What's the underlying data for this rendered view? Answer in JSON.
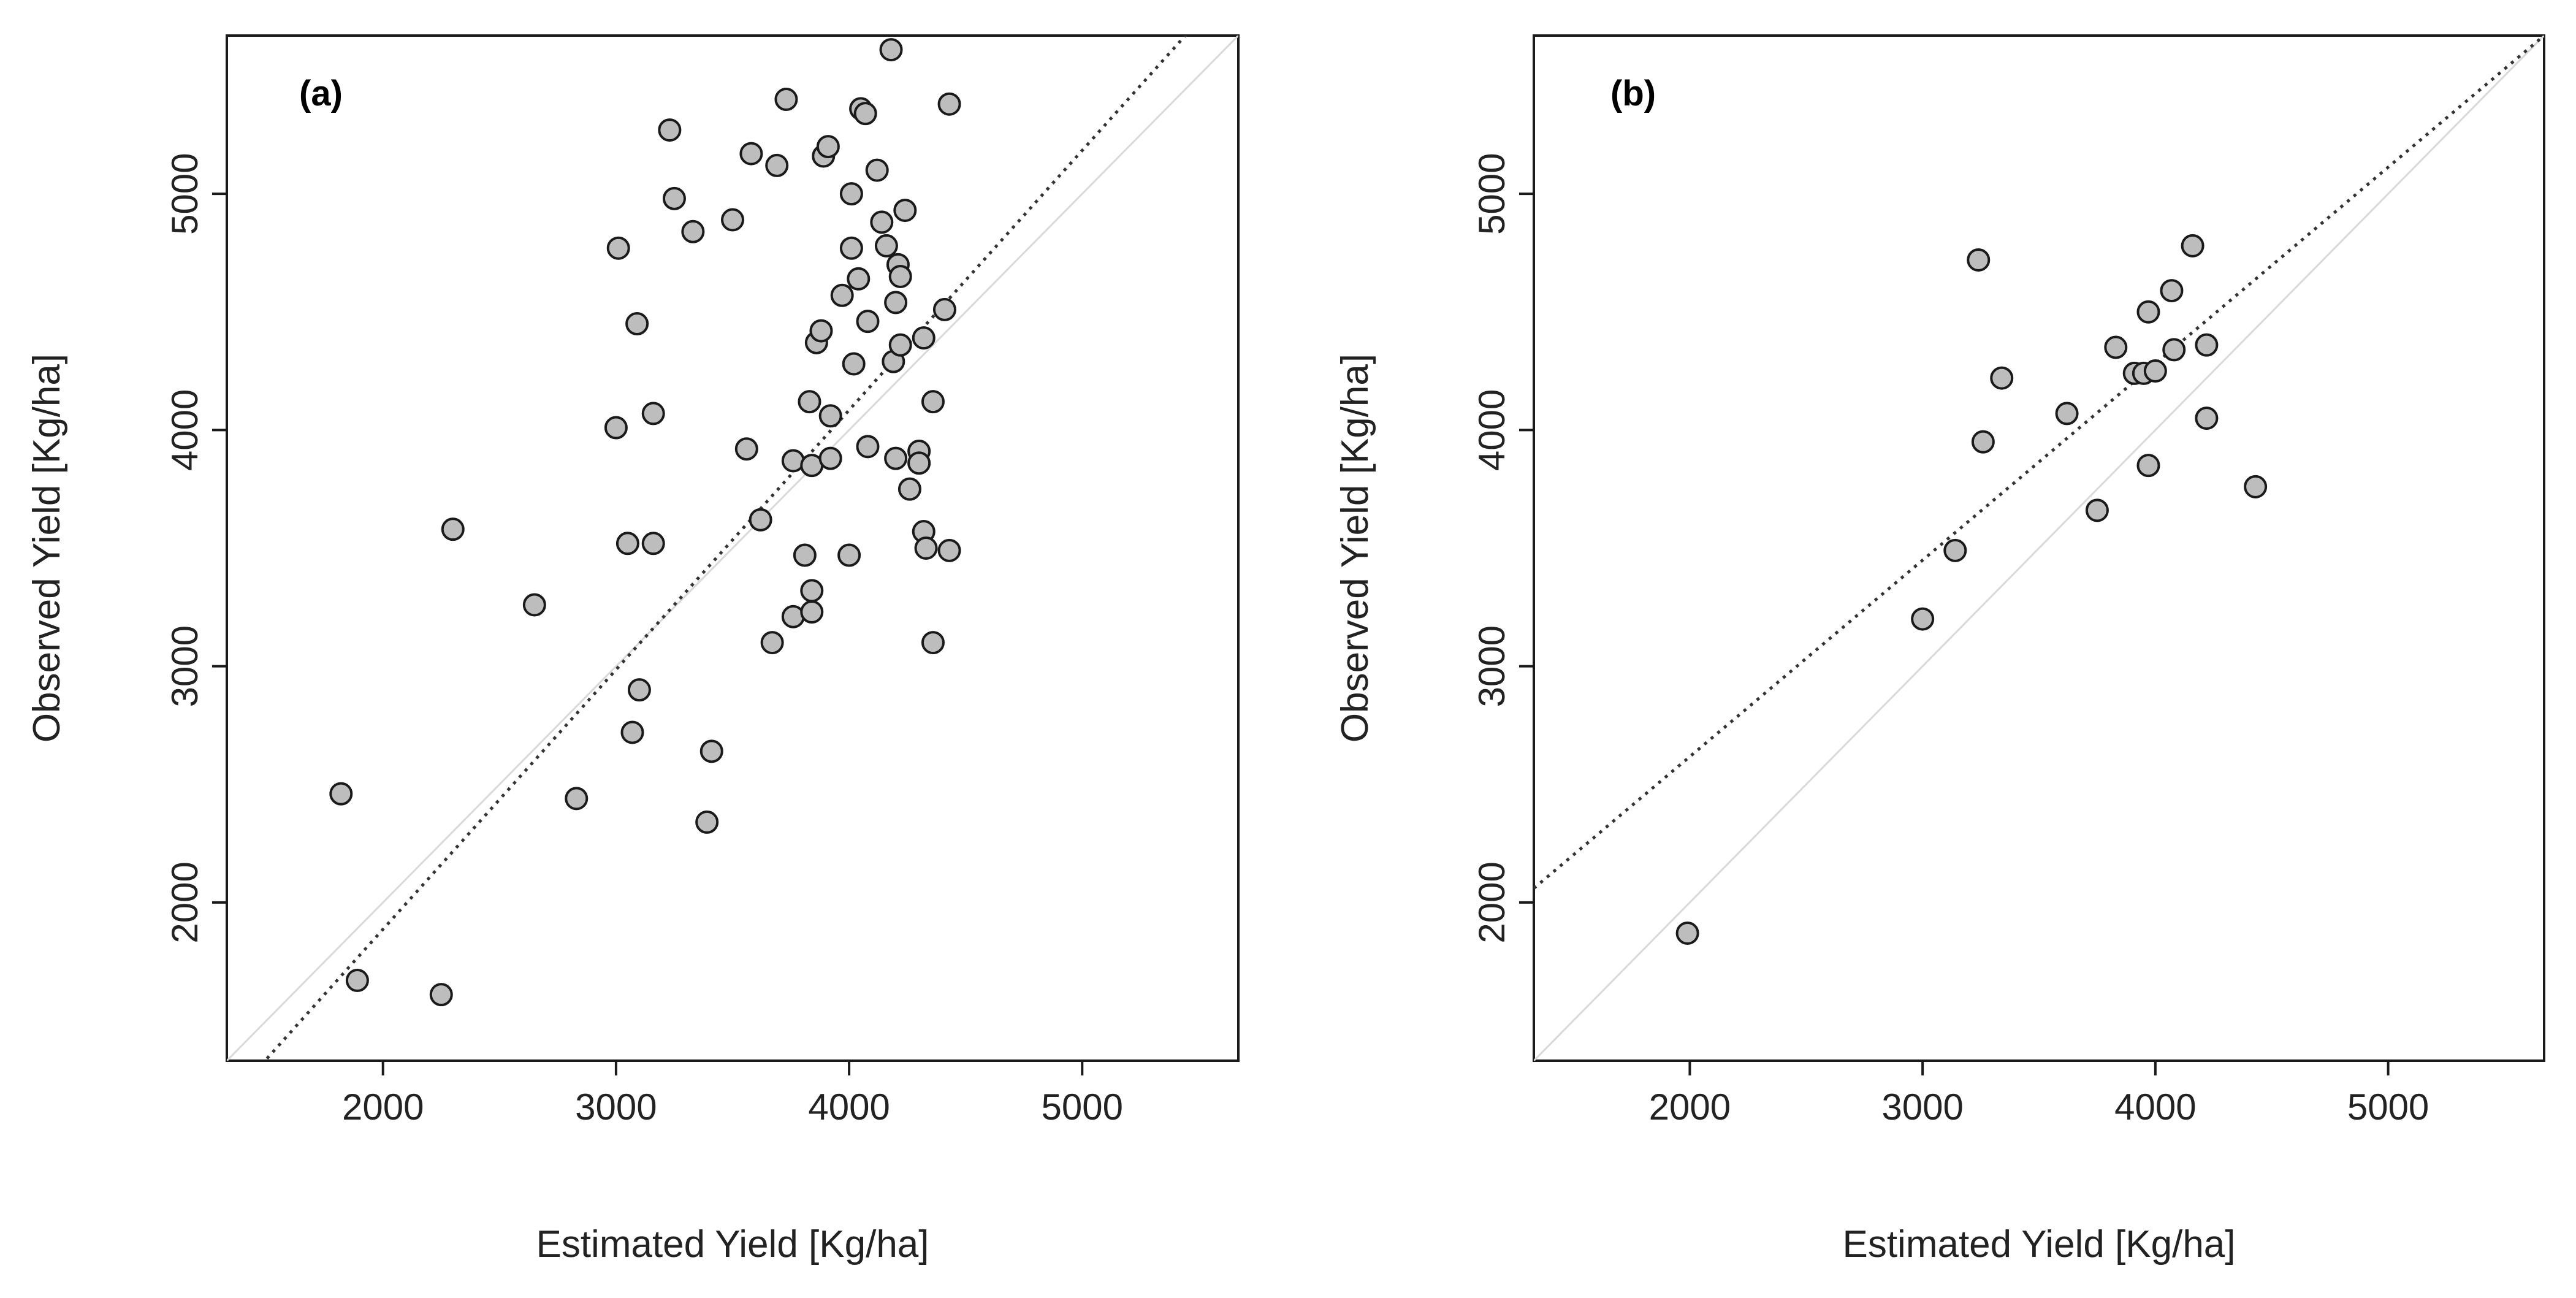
{
  "chart_data": [
    {
      "type": "scatter",
      "panel_label": "(a)",
      "xlabel": "Estimated Yield [Kg/ha]",
      "ylabel": "Observed Yield [Kg/ha]",
      "xlim": [
        1330,
        5670
      ],
      "ylim": [
        1330,
        5670
      ],
      "xticks": [
        2000,
        3000,
        4000,
        5000
      ],
      "yticks": [
        2000,
        3000,
        4000,
        5000
      ],
      "grid": false,
      "identity_line": {
        "slope": 1,
        "intercept": 0,
        "color": "#d9d9d9"
      },
      "fit_line": {
        "x": [
          1330,
          5670
        ],
        "y": [
          1150,
          5920
        ],
        "style": "dotted",
        "color": "#333333"
      },
      "marker_fill": "#bdbdbd",
      "marker_edge": "#1a1a1a",
      "points": [
        {
          "x": 1820,
          "y": 2460
        },
        {
          "x": 1890,
          "y": 1670
        },
        {
          "x": 2250,
          "y": 1610
        },
        {
          "x": 2300,
          "y": 3580
        },
        {
          "x": 2650,
          "y": 3260
        },
        {
          "x": 2830,
          "y": 2440
        },
        {
          "x": 3000,
          "y": 4010
        },
        {
          "x": 3010,
          "y": 4770
        },
        {
          "x": 3050,
          "y": 3520
        },
        {
          "x": 3070,
          "y": 2720
        },
        {
          "x": 3090,
          "y": 4450
        },
        {
          "x": 3100,
          "y": 2900
        },
        {
          "x": 3160,
          "y": 3520
        },
        {
          "x": 3160,
          "y": 4070
        },
        {
          "x": 3230,
          "y": 5270
        },
        {
          "x": 3250,
          "y": 4980
        },
        {
          "x": 3330,
          "y": 4840
        },
        {
          "x": 3390,
          "y": 2340
        },
        {
          "x": 3410,
          "y": 2640
        },
        {
          "x": 3500,
          "y": 4890
        },
        {
          "x": 3560,
          "y": 3920
        },
        {
          "x": 3580,
          "y": 5170
        },
        {
          "x": 3620,
          "y": 3620
        },
        {
          "x": 3670,
          "y": 3100
        },
        {
          "x": 3690,
          "y": 5120
        },
        {
          "x": 3730,
          "y": 5400
        },
        {
          "x": 3760,
          "y": 3210
        },
        {
          "x": 3760,
          "y": 3870
        },
        {
          "x": 3810,
          "y": 3470
        },
        {
          "x": 3830,
          "y": 4120
        },
        {
          "x": 3840,
          "y": 3850
        },
        {
          "x": 3840,
          "y": 3320
        },
        {
          "x": 3840,
          "y": 3230
        },
        {
          "x": 3860,
          "y": 4370
        },
        {
          "x": 3880,
          "y": 4420
        },
        {
          "x": 3890,
          "y": 5160
        },
        {
          "x": 3910,
          "y": 5200
        },
        {
          "x": 3920,
          "y": 4060
        },
        {
          "x": 3920,
          "y": 3880
        },
        {
          "x": 3970,
          "y": 4570
        },
        {
          "x": 4000,
          "y": 3470
        },
        {
          "x": 4010,
          "y": 5000
        },
        {
          "x": 4010,
          "y": 4770
        },
        {
          "x": 4020,
          "y": 4280
        },
        {
          "x": 4040,
          "y": 4640
        },
        {
          "x": 4050,
          "y": 5360
        },
        {
          "x": 4070,
          "y": 5340
        },
        {
          "x": 4080,
          "y": 3930
        },
        {
          "x": 4080,
          "y": 4460
        },
        {
          "x": 4120,
          "y": 5100
        },
        {
          "x": 4140,
          "y": 4880
        },
        {
          "x": 4160,
          "y": 4780
        },
        {
          "x": 4180,
          "y": 5610
        },
        {
          "x": 4190,
          "y": 4290
        },
        {
          "x": 4200,
          "y": 3880
        },
        {
          "x": 4200,
          "y": 4540
        },
        {
          "x": 4210,
          "y": 4700
        },
        {
          "x": 4220,
          "y": 4650
        },
        {
          "x": 4220,
          "y": 4360
        },
        {
          "x": 4240,
          "y": 4930
        },
        {
          "x": 4260,
          "y": 3750
        },
        {
          "x": 4300,
          "y": 3910
        },
        {
          "x": 4300,
          "y": 3860
        },
        {
          "x": 4320,
          "y": 4390
        },
        {
          "x": 4320,
          "y": 3570
        },
        {
          "x": 4330,
          "y": 3500
        },
        {
          "x": 4360,
          "y": 4120
        },
        {
          "x": 4360,
          "y": 3100
        },
        {
          "x": 4410,
          "y": 4510
        },
        {
          "x": 4430,
          "y": 3490
        },
        {
          "x": 4430,
          "y": 5380
        }
      ]
    },
    {
      "type": "scatter",
      "panel_label": "(b)",
      "xlabel": "Estimated Yield [Kg/ha]",
      "ylabel": "Observed Yield [Kg/ha]",
      "xlim": [
        1330,
        5670
      ],
      "ylim": [
        1330,
        5670
      ],
      "xticks": [
        2000,
        3000,
        4000,
        5000
      ],
      "yticks": [
        2000,
        3000,
        4000,
        5000
      ],
      "grid": false,
      "identity_line": {
        "slope": 1,
        "intercept": 0,
        "color": "#d9d9d9"
      },
      "fit_line": {
        "x": [
          1330,
          5670
        ],
        "y": [
          2060,
          5670
        ],
        "style": "dotted",
        "color": "#333333"
      },
      "marker_fill": "#bdbdbd",
      "marker_edge": "#1a1a1a",
      "points": [
        {
          "x": 1990,
          "y": 1870
        },
        {
          "x": 3000,
          "y": 3200
        },
        {
          "x": 3140,
          "y": 3490
        },
        {
          "x": 3240,
          "y": 4720
        },
        {
          "x": 3260,
          "y": 3950
        },
        {
          "x": 3340,
          "y": 4220
        },
        {
          "x": 3620,
          "y": 4070
        },
        {
          "x": 3750,
          "y": 3660
        },
        {
          "x": 3830,
          "y": 4350
        },
        {
          "x": 3910,
          "y": 4240
        },
        {
          "x": 3950,
          "y": 4240
        },
        {
          "x": 3970,
          "y": 3850
        },
        {
          "x": 3970,
          "y": 4500
        },
        {
          "x": 4000,
          "y": 4250
        },
        {
          "x": 4070,
          "y": 4590
        },
        {
          "x": 4080,
          "y": 4340
        },
        {
          "x": 4160,
          "y": 4780
        },
        {
          "x": 4220,
          "y": 4360
        },
        {
          "x": 4220,
          "y": 4050
        },
        {
          "x": 4430,
          "y": 3760
        }
      ]
    }
  ]
}
